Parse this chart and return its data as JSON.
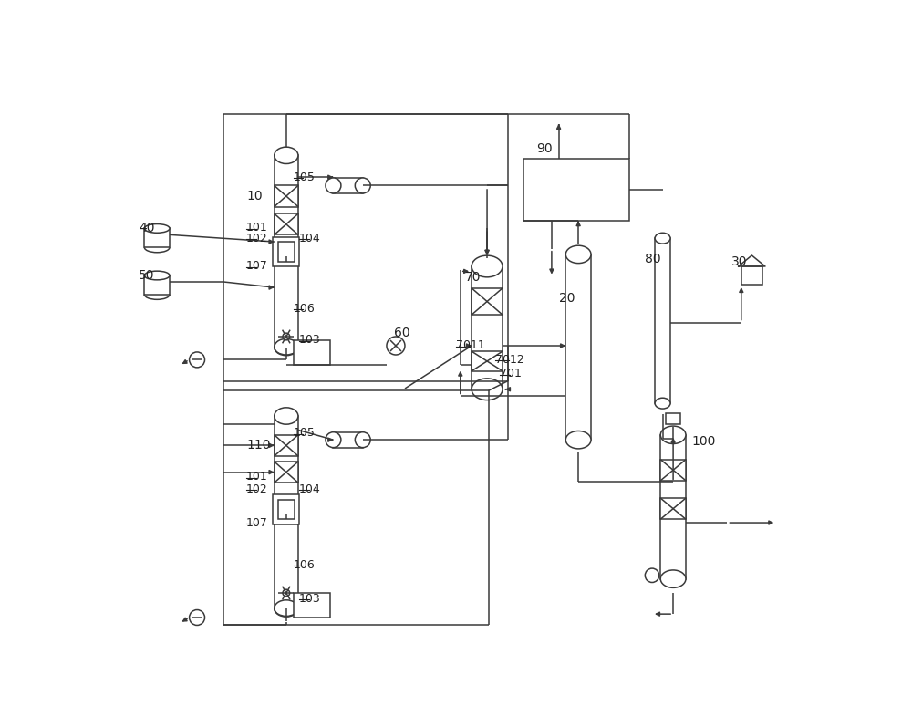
{
  "bg_color": "#ffffff",
  "line_color": "#3a3a3a",
  "line_width": 1.1,
  "label_fontsize": 9,
  "fig_width": 10.0,
  "fig_height": 7.97
}
